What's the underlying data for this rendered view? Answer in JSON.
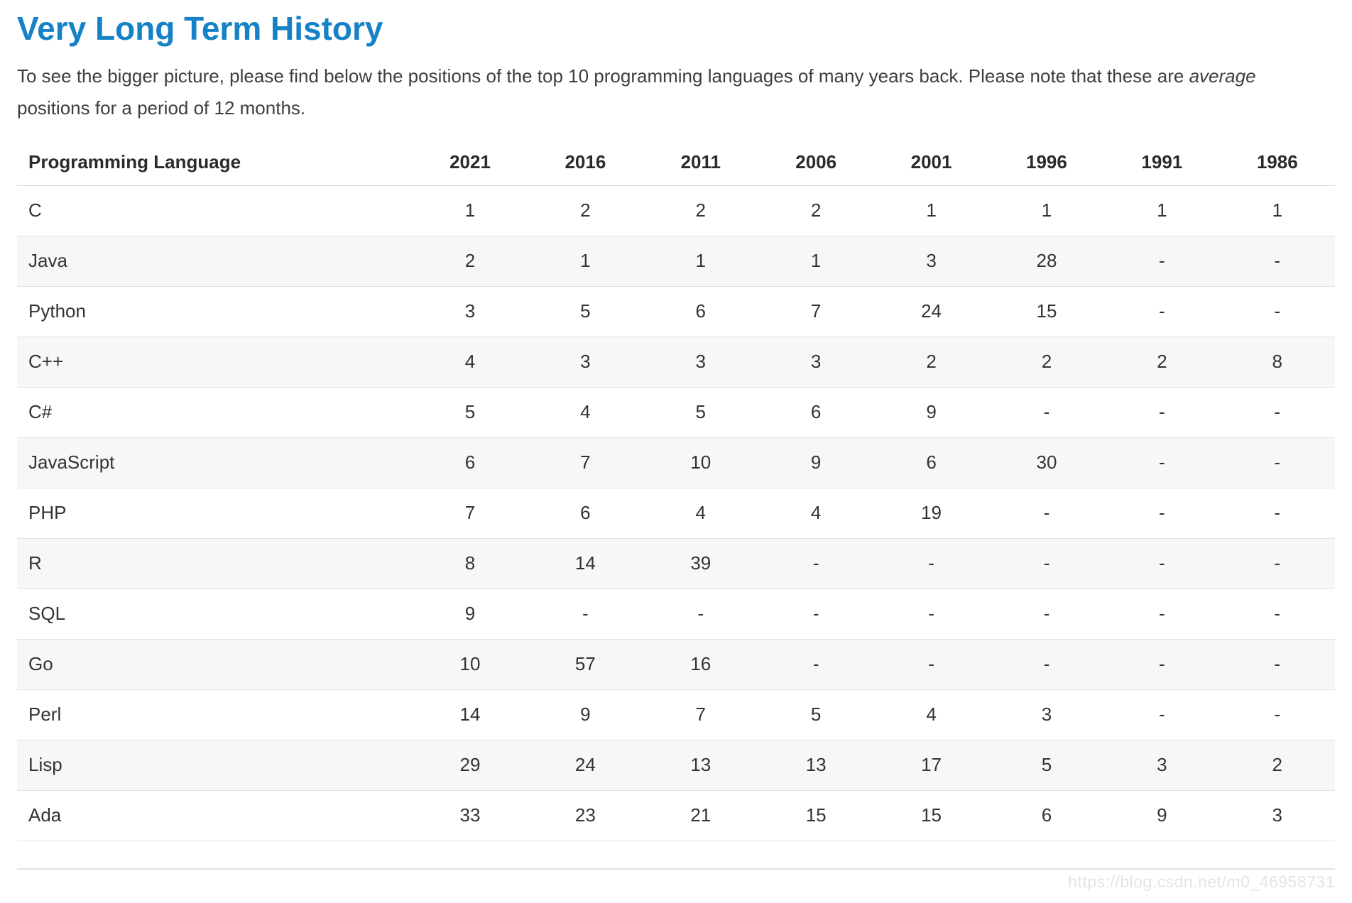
{
  "page": {
    "title": "Very Long Term History"
  },
  "intro": {
    "line1_text": "To see the bigger picture, please find below the positions of the top 10 programming languages of many years back. Please note that these are ",
    "line1_italic": "average",
    "line2": "positions for a period of 12 months."
  },
  "table": {
    "columns": [
      "Programming Language",
      "2021",
      "2016",
      "2011",
      "2006",
      "2001",
      "1996",
      "1991",
      "1986"
    ],
    "rows": [
      {
        "language": "C",
        "values": [
          "1",
          "2",
          "2",
          "2",
          "1",
          "1",
          "1",
          "1"
        ]
      },
      {
        "language": "Java",
        "values": [
          "2",
          "1",
          "1",
          "1",
          "3",
          "28",
          "-",
          "-"
        ]
      },
      {
        "language": "Python",
        "values": [
          "3",
          "5",
          "6",
          "7",
          "24",
          "15",
          "-",
          "-"
        ]
      },
      {
        "language": "C++",
        "values": [
          "4",
          "3",
          "3",
          "3",
          "2",
          "2",
          "2",
          "8"
        ]
      },
      {
        "language": "C#",
        "values": [
          "5",
          "4",
          "5",
          "6",
          "9",
          "-",
          "-",
          "-"
        ]
      },
      {
        "language": "JavaScript",
        "values": [
          "6",
          "7",
          "10",
          "9",
          "6",
          "30",
          "-",
          "-"
        ]
      },
      {
        "language": "PHP",
        "values": [
          "7",
          "6",
          "4",
          "4",
          "19",
          "-",
          "-",
          "-"
        ]
      },
      {
        "language": "R",
        "values": [
          "8",
          "14",
          "39",
          "-",
          "-",
          "-",
          "-",
          "-"
        ]
      },
      {
        "language": "SQL",
        "values": [
          "9",
          "-",
          "-",
          "-",
          "-",
          "-",
          "-",
          "-"
        ]
      },
      {
        "language": "Go",
        "values": [
          "10",
          "57",
          "16",
          "-",
          "-",
          "-",
          "-",
          "-"
        ]
      },
      {
        "language": "Perl",
        "values": [
          "14",
          "9",
          "7",
          "5",
          "4",
          "3",
          "-",
          "-"
        ]
      },
      {
        "language": "Lisp",
        "values": [
          "29",
          "24",
          "13",
          "13",
          "17",
          "5",
          "3",
          "2"
        ]
      },
      {
        "language": "Ada",
        "values": [
          "33",
          "23",
          "21",
          "15",
          "15",
          "6",
          "9",
          "3"
        ]
      }
    ]
  },
  "watermark": {
    "text": "https://blog.csdn.net/m0_46958731"
  },
  "colors": {
    "title_blue": "#1581c6",
    "stripe": "#f7f7f7",
    "row_border": "#e3e3e3",
    "header_border": "#d7d7d7",
    "watermark_gray": "#e4e4e4"
  }
}
